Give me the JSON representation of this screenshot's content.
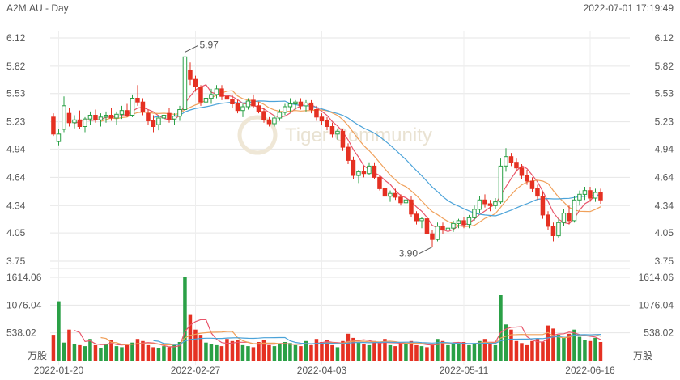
{
  "header": {
    "symbol": "A2M.AU - Day",
    "timestamp": "2022-07-01 17:19:49"
  },
  "watermark": "Tiger Community",
  "chart_data": {
    "type": "candlestick",
    "price_ticks": [
      "6.12",
      "5.82",
      "5.53",
      "5.23",
      "4.94",
      "4.64",
      "4.34",
      "4.05",
      "3.75"
    ],
    "price_range": [
      3.75,
      6.12
    ],
    "volume_ticks": [
      "1614.06",
      "1076.04",
      "538.02"
    ],
    "volume_unit": "万股",
    "volume_range": [
      0,
      1614.06
    ],
    "x_labels": [
      "2022-01-20",
      "2022-02-27",
      "2022-04-03",
      "2022-05-11",
      "2022-06-16"
    ],
    "annotations": [
      {
        "label": "5.97",
        "value": 5.97,
        "type": "high"
      },
      {
        "label": "3.90",
        "value": 3.9,
        "type": "low"
      }
    ],
    "ohlc": [
      [
        5.28,
        5.32,
        5.08,
        5.1
      ],
      [
        5.02,
        5.15,
        4.98,
        5.1
      ],
      [
        5.15,
        5.5,
        5.12,
        5.4
      ],
      [
        5.32,
        5.38,
        5.18,
        5.22
      ],
      [
        5.22,
        5.3,
        5.16,
        5.25
      ],
      [
        5.25,
        5.35,
        5.15,
        5.18
      ],
      [
        5.18,
        5.28,
        5.12,
        5.26
      ],
      [
        5.26,
        5.34,
        5.2,
        5.3
      ],
      [
        5.3,
        5.36,
        5.22,
        5.25
      ],
      [
        5.25,
        5.32,
        5.18,
        5.28
      ],
      [
        5.28,
        5.34,
        5.22,
        5.3
      ],
      [
        5.3,
        5.38,
        5.24,
        5.27
      ],
      [
        5.27,
        5.34,
        5.2,
        5.31
      ],
      [
        5.31,
        5.4,
        5.26,
        5.35
      ],
      [
        5.35,
        5.42,
        5.28,
        5.3
      ],
      [
        5.3,
        5.52,
        5.28,
        5.48
      ],
      [
        5.48,
        5.62,
        5.4,
        5.44
      ],
      [
        5.44,
        5.48,
        5.3,
        5.34
      ],
      [
        5.32,
        5.36,
        5.2,
        5.24
      ],
      [
        5.24,
        5.3,
        5.12,
        5.18
      ],
      [
        5.2,
        5.3,
        5.14,
        5.27
      ],
      [
        5.27,
        5.36,
        5.22,
        5.3
      ],
      [
        5.32,
        5.38,
        5.22,
        5.26
      ],
      [
        5.26,
        5.32,
        5.2,
        5.29
      ],
      [
        5.29,
        5.4,
        5.24,
        5.36
      ],
      [
        5.36,
        5.97,
        5.32,
        5.92
      ],
      [
        5.78,
        5.86,
        5.62,
        5.68
      ],
      [
        5.68,
        5.72,
        5.55,
        5.6
      ],
      [
        5.6,
        5.62,
        5.4,
        5.44
      ],
      [
        5.44,
        5.52,
        5.38,
        5.48
      ],
      [
        5.48,
        5.58,
        5.42,
        5.52
      ],
      [
        5.52,
        5.62,
        5.48,
        5.58
      ],
      [
        5.58,
        5.62,
        5.46,
        5.5
      ],
      [
        5.5,
        5.55,
        5.44,
        5.47
      ],
      [
        5.47,
        5.52,
        5.38,
        5.42
      ],
      [
        5.42,
        5.46,
        5.32,
        5.35
      ],
      [
        5.35,
        5.42,
        5.28,
        5.39
      ],
      [
        5.39,
        5.48,
        5.36,
        5.45
      ],
      [
        5.46,
        5.52,
        5.38,
        5.4
      ],
      [
        5.4,
        5.44,
        5.32,
        5.34
      ],
      [
        5.34,
        5.38,
        5.22,
        5.25
      ],
      [
        5.25,
        5.28,
        5.18,
        5.21
      ],
      [
        5.21,
        5.3,
        5.18,
        5.27
      ],
      [
        5.27,
        5.36,
        5.24,
        5.33
      ],
      [
        5.33,
        5.42,
        5.3,
        5.39
      ],
      [
        5.39,
        5.48,
        5.34,
        5.42
      ],
      [
        5.42,
        5.46,
        5.36,
        5.44
      ],
      [
        5.44,
        5.48,
        5.36,
        5.4
      ],
      [
        5.4,
        5.46,
        5.34,
        5.43
      ],
      [
        5.43,
        5.46,
        5.32,
        5.36
      ],
      [
        5.36,
        5.4,
        5.24,
        5.28
      ],
      [
        5.28,
        5.32,
        5.2,
        5.24
      ],
      [
        5.24,
        5.28,
        5.14,
        5.18
      ],
      [
        5.18,
        5.22,
        5.06,
        5.1
      ],
      [
        5.1,
        5.16,
        5.04,
        5.13
      ],
      [
        5.13,
        5.15,
        4.92,
        4.96
      ],
      [
        4.96,
        5.0,
        4.78,
        4.82
      ],
      [
        4.82,
        4.86,
        4.62,
        4.66
      ],
      [
        4.66,
        4.72,
        4.58,
        4.7
      ],
      [
        4.7,
        4.76,
        4.64,
        4.68
      ],
      [
        4.68,
        4.8,
        4.66,
        4.76
      ],
      [
        4.76,
        4.8,
        4.62,
        4.64
      ],
      [
        4.64,
        4.66,
        4.5,
        4.52
      ],
      [
        4.52,
        4.56,
        4.4,
        4.44
      ],
      [
        4.44,
        4.5,
        4.38,
        4.47
      ],
      [
        4.47,
        4.52,
        4.4,
        4.43
      ],
      [
        4.43,
        4.46,
        4.34,
        4.37
      ],
      [
        4.37,
        4.42,
        4.3,
        4.4
      ],
      [
        4.4,
        4.44,
        4.22,
        4.25
      ],
      [
        4.25,
        4.28,
        4.14,
        4.18
      ],
      [
        4.18,
        4.22,
        4.1,
        4.2
      ],
      [
        4.2,
        4.22,
        4.0,
        4.04
      ],
      [
        4.04,
        4.08,
        3.9,
        3.98
      ],
      [
        3.98,
        4.16,
        3.96,
        4.12
      ],
      [
        4.12,
        4.16,
        4.04,
        4.08
      ],
      [
        4.08,
        4.14,
        4.0,
        4.1
      ],
      [
        4.1,
        4.18,
        4.06,
        4.15
      ],
      [
        4.15,
        4.2,
        4.1,
        4.18
      ],
      [
        4.18,
        4.22,
        4.1,
        4.14
      ],
      [
        4.14,
        4.24,
        4.1,
        4.21
      ],
      [
        4.21,
        4.34,
        4.18,
        4.3
      ],
      [
        4.3,
        4.44,
        4.26,
        4.4
      ],
      [
        4.4,
        4.46,
        4.32,
        4.36
      ],
      [
        4.36,
        4.4,
        4.28,
        4.34
      ],
      [
        4.34,
        4.42,
        4.3,
        4.38
      ],
      [
        4.38,
        4.84,
        4.36,
        4.76
      ],
      [
        4.76,
        4.95,
        4.7,
        4.86
      ],
      [
        4.86,
        4.9,
        4.76,
        4.8
      ],
      [
        4.8,
        4.84,
        4.7,
        4.74
      ],
      [
        4.74,
        4.78,
        4.62,
        4.66
      ],
      [
        4.66,
        4.72,
        4.56,
        4.6
      ],
      [
        4.6,
        4.64,
        4.48,
        4.52
      ],
      [
        4.52,
        4.56,
        4.4,
        4.44
      ],
      [
        4.44,
        4.48,
        4.2,
        4.24
      ],
      [
        4.24,
        4.28,
        4.08,
        4.12
      ],
      [
        4.12,
        4.16,
        3.96,
        4.02
      ],
      [
        4.02,
        4.2,
        4.0,
        4.16
      ],
      [
        4.16,
        4.3,
        4.12,
        4.26
      ],
      [
        4.26,
        4.34,
        4.14,
        4.18
      ],
      [
        4.18,
        4.44,
        4.16,
        4.4
      ],
      [
        4.4,
        4.5,
        4.34,
        4.46
      ],
      [
        4.46,
        4.54,
        4.4,
        4.5
      ],
      [
        4.5,
        4.54,
        4.38,
        4.42
      ],
      [
        4.42,
        4.52,
        4.38,
        4.48
      ],
      [
        4.48,
        4.52,
        4.36,
        4.4
      ]
    ],
    "volume": [
      500,
      1150,
      350,
      600,
      320,
      300,
      280,
      420,
      300,
      250,
      320,
      400,
      280,
      260,
      300,
      350,
      420,
      380,
      300,
      260,
      240,
      280,
      260,
      300,
      360,
      1614,
      900,
      600,
      500,
      350,
      320,
      300,
      280,
      420,
      380,
      400,
      300,
      280,
      260,
      360,
      400,
      300,
      280,
      320,
      360,
      340,
      300,
      280,
      380,
      300,
      420,
      360,
      400,
      300,
      260,
      380,
      520,
      440,
      360,
      320,
      300,
      380,
      340,
      420,
      300,
      280,
      360,
      320,
      380,
      300,
      280,
      260,
      300,
      420,
      380,
      300,
      340,
      320,
      360,
      300,
      320,
      380,
      420,
      360,
      300,
      1270,
      700,
      600,
      380,
      340,
      300,
      380,
      420,
      360,
      680,
      620,
      500,
      440,
      520,
      600,
      460,
      400,
      380,
      440,
      360
    ],
    "ma_price_colors": [
      "#e8556a",
      "#f0a05a",
      "#4ba3d9"
    ],
    "ma_volume_colors": [
      "#e8556a",
      "#f0a05a",
      "#4ba3d9"
    ],
    "up_color": "#2aa046",
    "down_color": "#e53122"
  }
}
